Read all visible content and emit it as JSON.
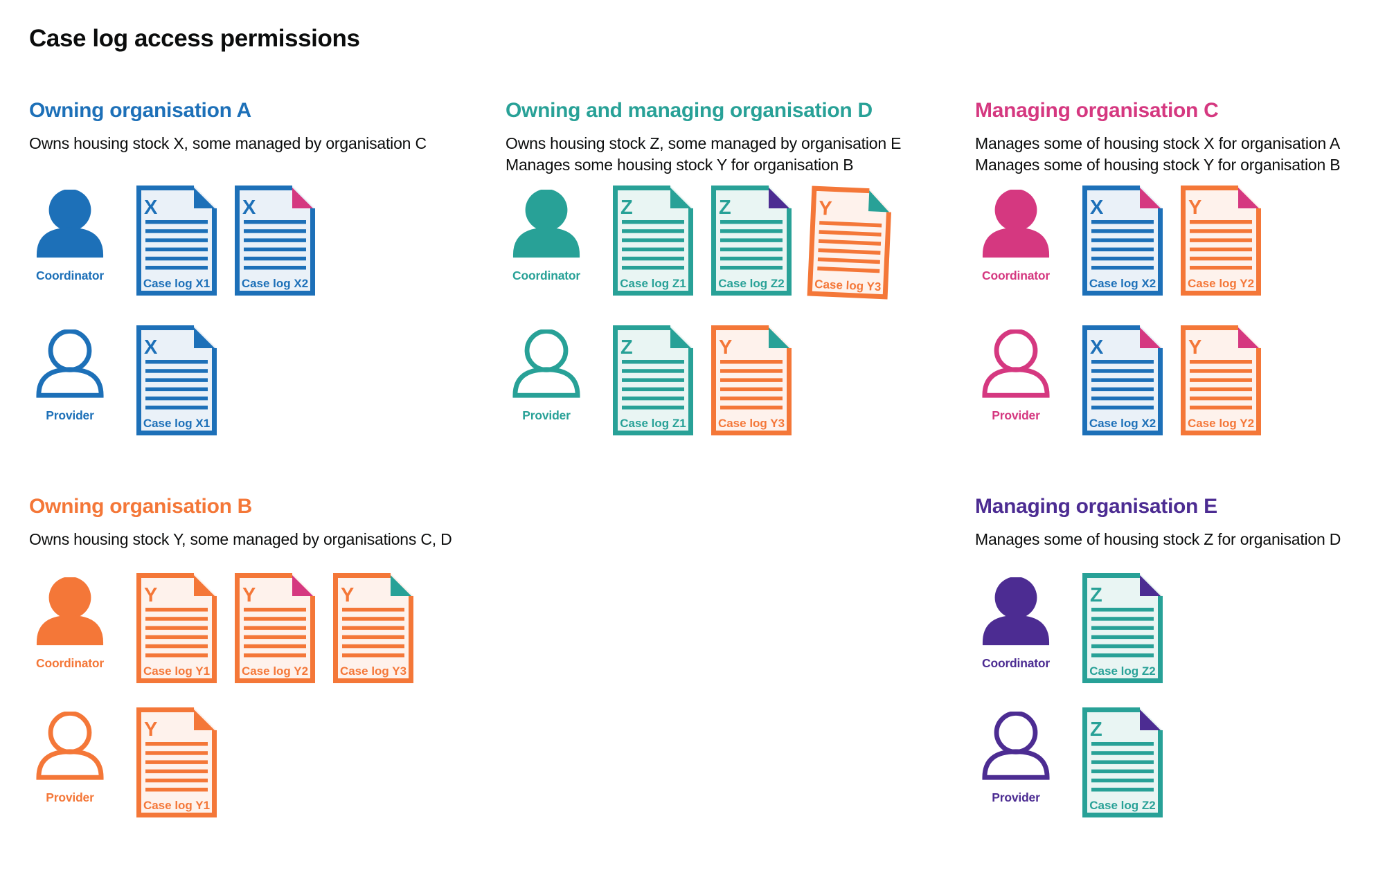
{
  "title": "Case log access permissions",
  "palette": {
    "text": "#0b0c0c",
    "background": "#ffffff",
    "blue": {
      "main": "#1d70b8",
      "tint": "#eaf1f8"
    },
    "teal": {
      "main": "#28a197",
      "tint": "#e9f5f3"
    },
    "pink": {
      "main": "#d53880",
      "tint": "#fbebf2"
    },
    "orange": {
      "main": "#f47738",
      "tint": "#fef2ec"
    },
    "purple": {
      "main": "#4c2c92",
      "tint": "#ede9f4"
    }
  },
  "sections": [
    {
      "id": "org-a",
      "heading": "Owning organisation A",
      "color": "blue",
      "description_lines": [
        "Owns housing stock X, some managed by organisation C"
      ],
      "rows": [
        {
          "role": "Coordinator",
          "person_style": "filled",
          "docs": [
            {
              "letter": "X",
              "label": "Case log X1",
              "doc_color": "blue",
              "fold_color": "blue"
            },
            {
              "letter": "X",
              "label": "Case log X2",
              "doc_color": "blue",
              "fold_color": "pink"
            }
          ]
        },
        {
          "role": "Provider",
          "person_style": "outline",
          "docs": [
            {
              "letter": "X",
              "label": "Case log X1",
              "doc_color": "blue",
              "fold_color": "blue"
            }
          ]
        }
      ]
    },
    {
      "id": "org-d",
      "heading": "Owning and managing organisation D",
      "color": "teal",
      "description_lines": [
        "Owns housing stock Z, some managed by organisation E",
        "Manages some housing stock Y for organisation B"
      ],
      "rows": [
        {
          "role": "Coordinator",
          "person_style": "filled",
          "docs": [
            {
              "letter": "Z",
              "label": "Case log Z1",
              "doc_color": "teal",
              "fold_color": "teal"
            },
            {
              "letter": "Z",
              "label": "Case log Z2",
              "doc_color": "teal",
              "fold_color": "purple"
            },
            {
              "letter": "Y",
              "label": "Case log Y3",
              "doc_color": "orange",
              "fold_color": "teal"
            }
          ]
        },
        {
          "role": "Provider",
          "person_style": "outline",
          "docs": [
            {
              "letter": "Z",
              "label": "Case log Z1",
              "doc_color": "teal",
              "fold_color": "teal"
            },
            {
              "letter": "Y",
              "label": "Case log Y3",
              "doc_color": "orange",
              "fold_color": "teal"
            }
          ]
        }
      ]
    },
    {
      "id": "org-c",
      "heading": "Managing organisation C",
      "color": "pink",
      "description_lines": [
        "Manages some of housing stock X for organisation A",
        "Manages some of housing stock Y for organisation B"
      ],
      "rows": [
        {
          "role": "Coordinator",
          "person_style": "filled",
          "docs": [
            {
              "letter": "X",
              "label": "Case log X2",
              "doc_color": "blue",
              "fold_color": "pink"
            },
            {
              "letter": "Y",
              "label": "Case log Y2",
              "doc_color": "orange",
              "fold_color": "pink"
            }
          ]
        },
        {
          "role": "Provider",
          "person_style": "outline",
          "docs": [
            {
              "letter": "X",
              "label": "Case log X2",
              "doc_color": "blue",
              "fold_color": "pink"
            },
            {
              "letter": "Y",
              "label": "Case log Y2",
              "doc_color": "orange",
              "fold_color": "pink"
            }
          ]
        }
      ]
    },
    {
      "id": "org-b",
      "heading": "Owning organisation B",
      "color": "orange",
      "description_lines": [
        "Owns housing stock Y, some managed by organisations C, D"
      ],
      "rows": [
        {
          "role": "Coordinator",
          "person_style": "filled",
          "docs": [
            {
              "letter": "Y",
              "label": "Case log Y1",
              "doc_color": "orange",
              "fold_color": "orange"
            },
            {
              "letter": "Y",
              "label": "Case log Y2",
              "doc_color": "orange",
              "fold_color": "pink"
            },
            {
              "letter": "Y",
              "label": "Case log Y3",
              "doc_color": "orange",
              "fold_color": "teal"
            }
          ]
        },
        {
          "role": "Provider",
          "person_style": "outline",
          "docs": [
            {
              "letter": "Y",
              "label": "Case log Y1",
              "doc_color": "orange",
              "fold_color": "orange"
            }
          ]
        }
      ]
    },
    {
      "id": "org-e",
      "heading": "Managing organisation E",
      "color": "purple",
      "description_lines": [
        "Manages some of housing stock Z for organisation D"
      ],
      "rows": [
        {
          "role": "Coordinator",
          "person_style": "filled",
          "docs": [
            {
              "letter": "Z",
              "label": "Case log Z2",
              "doc_color": "teal",
              "fold_color": "purple"
            }
          ]
        },
        {
          "role": "Provider",
          "person_style": "outline",
          "docs": [
            {
              "letter": "Z",
              "label": "Case log Z2",
              "doc_color": "teal",
              "fold_color": "purple"
            }
          ]
        }
      ]
    }
  ]
}
